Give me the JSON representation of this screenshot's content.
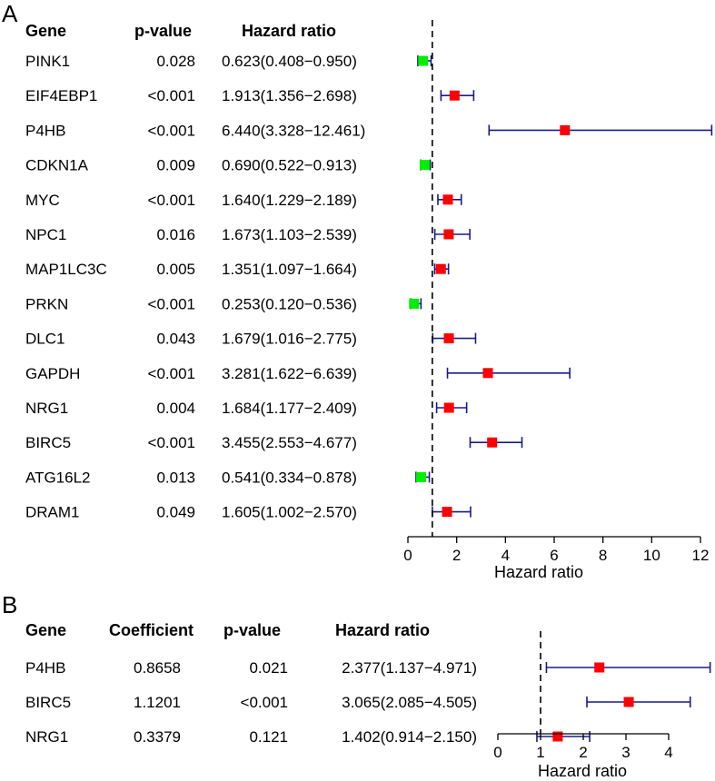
{
  "chart_data": [
    {
      "type": "forest",
      "panel_label": "A",
      "columns": {
        "gene": "Gene",
        "pvalue": "p-value",
        "hr": "Hazard ratio"
      },
      "xlabel": "Hazard ratio",
      "xlim": [
        0,
        12
      ],
      "xticks": [
        "0",
        "2",
        "4",
        "6",
        "8",
        "10",
        "12"
      ],
      "reference_line": 1,
      "rows": [
        {
          "gene": "PINK1",
          "pvalue": "0.028",
          "hr_text": "0.623(0.408−0.950)",
          "hr": 0.623,
          "lower": 0.408,
          "upper": 0.95
        },
        {
          "gene": "EIF4EBP1",
          "pvalue": "<0.001",
          "hr_text": "1.913(1.356−2.698)",
          "hr": 1.913,
          "lower": 1.356,
          "upper": 2.698
        },
        {
          "gene": "P4HB",
          "pvalue": "<0.001",
          "hr_text": "6.440(3.328−12.461)",
          "hr": 6.44,
          "lower": 3.328,
          "upper": 12.461
        },
        {
          "gene": "CDKN1A",
          "pvalue": "0.009",
          "hr_text": "0.690(0.522−0.913)",
          "hr": 0.69,
          "lower": 0.522,
          "upper": 0.913
        },
        {
          "gene": "MYC",
          "pvalue": "<0.001",
          "hr_text": "1.640(1.229−2.189)",
          "hr": 1.64,
          "lower": 1.229,
          "upper": 2.189
        },
        {
          "gene": "NPC1",
          "pvalue": "0.016",
          "hr_text": "1.673(1.103−2.539)",
          "hr": 1.673,
          "lower": 1.103,
          "upper": 2.539
        },
        {
          "gene": "MAP1LC3C",
          "pvalue": "0.005",
          "hr_text": "1.351(1.097−1.664)",
          "hr": 1.351,
          "lower": 1.097,
          "upper": 1.664
        },
        {
          "gene": "PRKN",
          "pvalue": "<0.001",
          "hr_text": "0.253(0.120−0.536)",
          "hr": 0.253,
          "lower": 0.12,
          "upper": 0.536
        },
        {
          "gene": "DLC1",
          "pvalue": "0.043",
          "hr_text": "1.679(1.016−2.775)",
          "hr": 1.679,
          "lower": 1.016,
          "upper": 2.775
        },
        {
          "gene": "GAPDH",
          "pvalue": "<0.001",
          "hr_text": "3.281(1.622−6.639)",
          "hr": 3.281,
          "lower": 1.622,
          "upper": 6.639
        },
        {
          "gene": "NRG1",
          "pvalue": "0.004",
          "hr_text": "1.684(1.177−2.409)",
          "hr": 1.684,
          "lower": 1.177,
          "upper": 2.409
        },
        {
          "gene": "BIRC5",
          "pvalue": "<0.001",
          "hr_text": "3.455(2.553−4.677)",
          "hr": 3.455,
          "lower": 2.553,
          "upper": 4.677
        },
        {
          "gene": "ATG16L2",
          "pvalue": "0.013",
          "hr_text": "0.541(0.334−0.878)",
          "hr": 0.541,
          "lower": 0.334,
          "upper": 0.878
        },
        {
          "gene": "DRAM1",
          "pvalue": "0.049",
          "hr_text": "1.605(1.002−2.570)",
          "hr": 1.605,
          "lower": 1.002,
          "upper": 2.57
        }
      ]
    },
    {
      "type": "forest",
      "panel_label": "B",
      "columns": {
        "gene": "Gene",
        "coef": "Coefficient",
        "pvalue": "p-value",
        "hr": "Hazard ratio"
      },
      "xlabel": "Hazard ratio",
      "xlim": [
        0,
        4
      ],
      "xticks": [
        "0",
        "1",
        "2",
        "3",
        "4"
      ],
      "reference_line": 1,
      "rows": [
        {
          "gene": "P4HB",
          "coef": "0.8658",
          "pvalue": "0.021",
          "hr_text": "2.377(1.137−4.971)",
          "hr": 2.377,
          "lower": 1.137,
          "upper": 4.971
        },
        {
          "gene": "BIRC5",
          "coef": "1.1201",
          "pvalue": "<0.001",
          "hr_text": "3.065(2.085−4.505)",
          "hr": 3.065,
          "lower": 2.085,
          "upper": 4.505
        },
        {
          "gene": "NRG1",
          "coef": "0.3379",
          "pvalue": "0.121",
          "hr_text": "1.402(0.914−2.150)",
          "hr": 1.402,
          "lower": 0.914,
          "upper": 2.15
        }
      ]
    }
  ],
  "colors": {
    "risk": "#ff0000",
    "protective": "#00ee00",
    "ci_line": "#1a1a8c",
    "axis": "#000000"
  }
}
